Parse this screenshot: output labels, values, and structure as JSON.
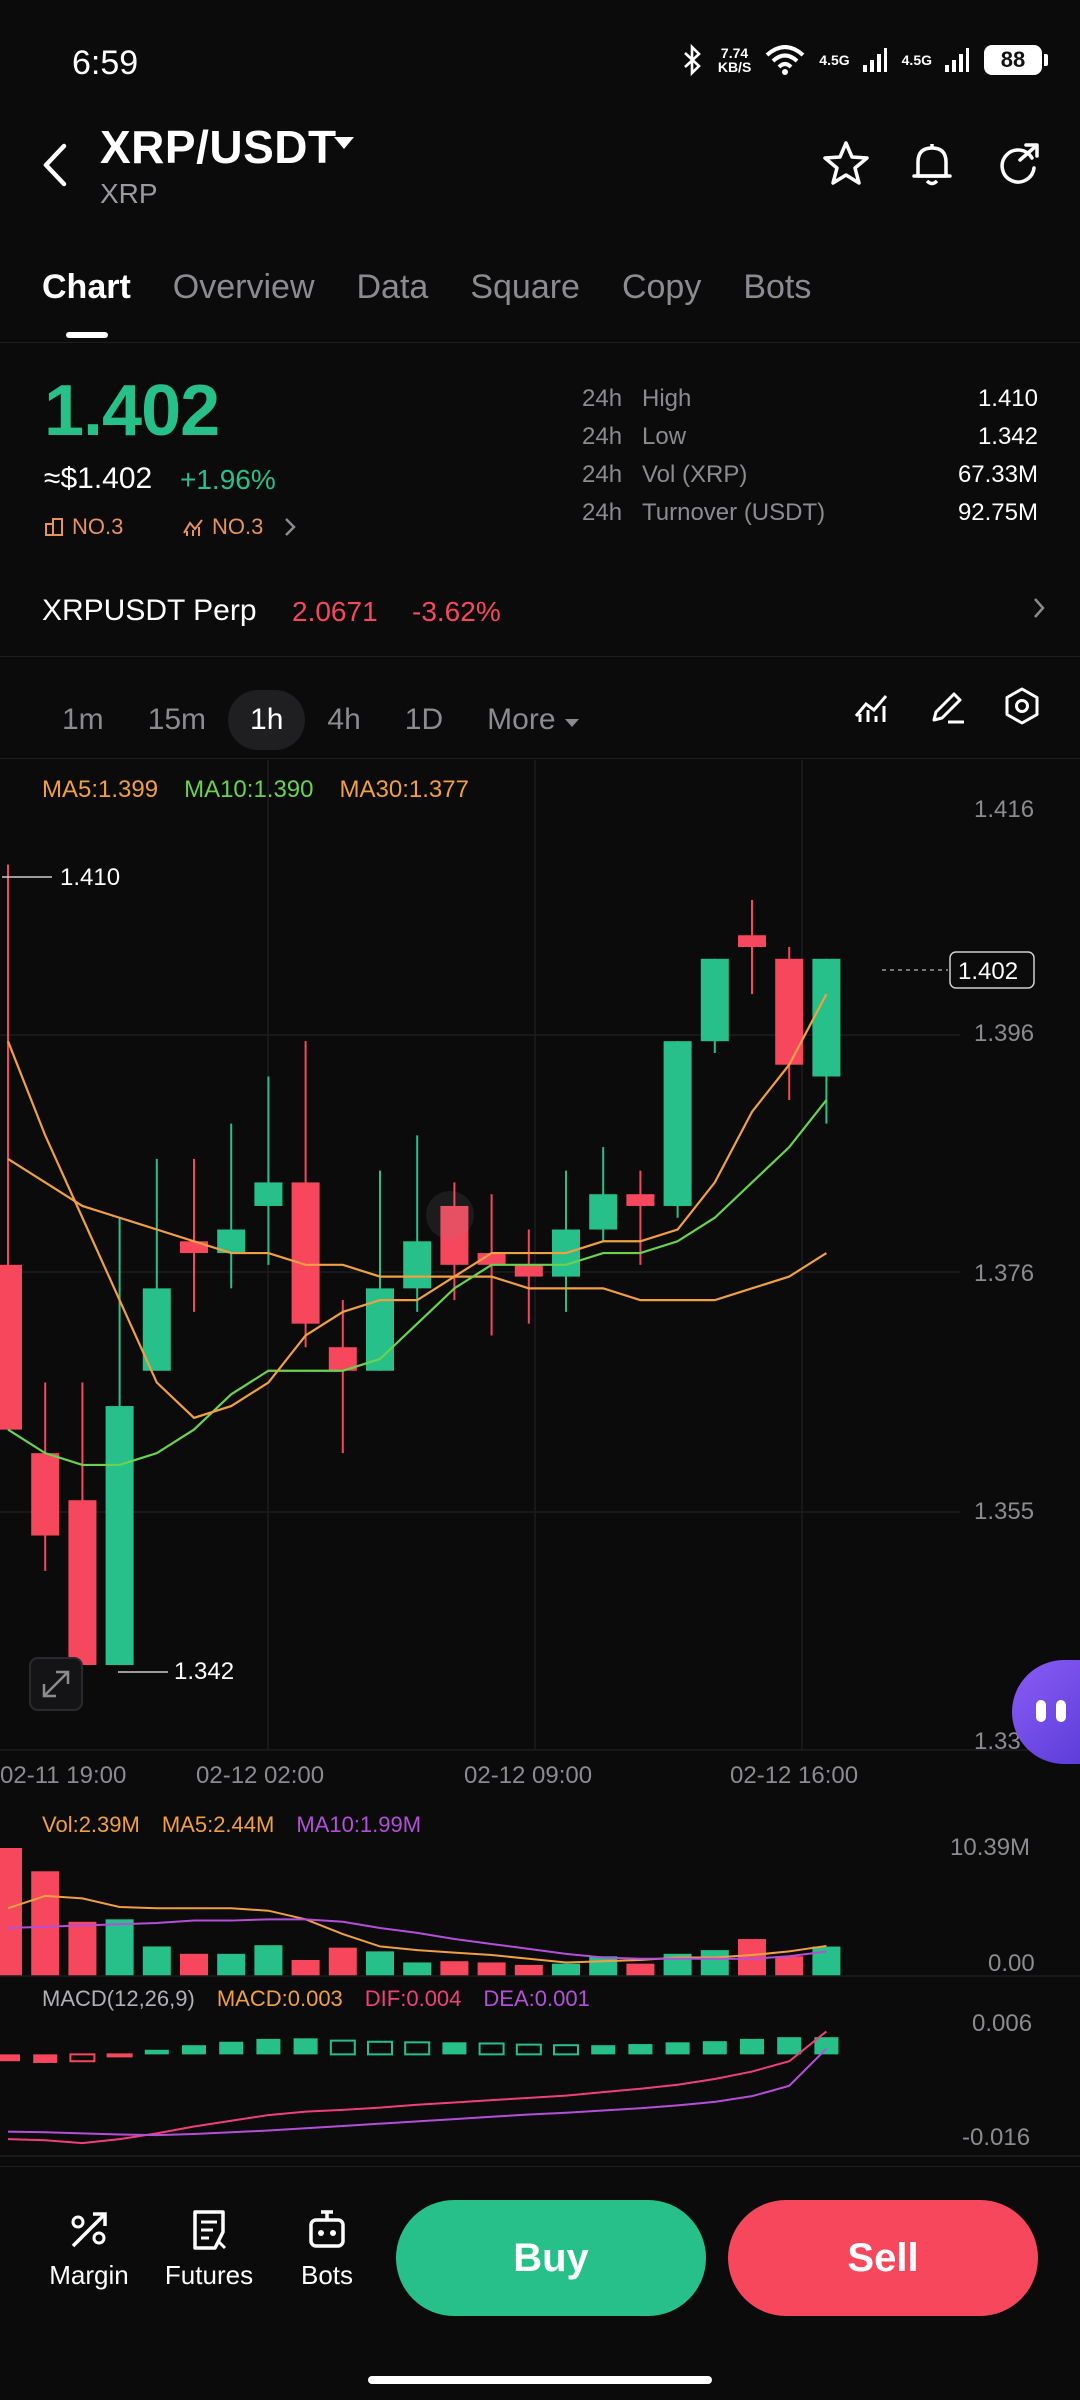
{
  "status": {
    "time": "6:59",
    "net_speed": "7.74",
    "net_unit": "KB/S",
    "signal1": "4.5G",
    "signal2": "4.5G",
    "battery": "88"
  },
  "header": {
    "pair": "XRP/USDT",
    "sub": "XRP"
  },
  "tabs": [
    "Chart",
    "Overview",
    "Data",
    "Square",
    "Copy",
    "Bots"
  ],
  "price": {
    "last": "1.402",
    "fiat": "≈$1.402",
    "change": "+1.96%",
    "rank1": "NO.3",
    "rank2": "NO.3"
  },
  "stats": [
    {
      "period": "24h",
      "label": "High",
      "value": "1.410"
    },
    {
      "period": "24h",
      "label": "Low",
      "value": "1.342"
    },
    {
      "period": "24h",
      "label": "Vol (XRP)",
      "value": "67.33M"
    },
    {
      "period": "24h",
      "label": "Turnover (USDT)",
      "value": "92.75M"
    }
  ],
  "perp": {
    "name": "XRPUSDT Perp",
    "price": "2.0671",
    "change": "-3.62%"
  },
  "timeframes": [
    "1m",
    "15m",
    "1h",
    "4h",
    "1D",
    "More"
  ],
  "ma_legend": {
    "ma5": "MA5:1.399",
    "ma10": "MA10:1.390",
    "ma30": "MA30:1.377"
  },
  "price_axis": [
    "1.416",
    "1.396",
    "1.376",
    "1.355",
    "1.33"
  ],
  "time_axis": [
    "02-11 19:00",
    "02-12 02:00",
    "02-12 09:00",
    "02-12 16:00"
  ],
  "markers": {
    "high": "1.410",
    "low": "1.342",
    "current": "1.402"
  },
  "volume": {
    "vol": "Vol:2.39M",
    "ma5": "MA5:2.44M",
    "ma10": "MA10:1.99M",
    "axis_top": "10.39M",
    "axis_bottom": "0.00"
  },
  "macd": {
    "name": "MACD(12,26,9)",
    "macd": "MACD:0.003",
    "dif": "DIF:0.004",
    "dea": "DEA:0.001",
    "axis_top": "0.006",
    "axis_bottom": "-0.016"
  },
  "bottom": {
    "margin": "Margin",
    "futures": "Futures",
    "bots": "Bots",
    "buy": "Buy",
    "sell": "Sell"
  },
  "colors": {
    "up": "#27c08a",
    "down": "#f6475d",
    "ma5": "#f0a040",
    "ma10": "#6ad24e",
    "ma30": "#f0a040",
    "vol_ma10": "#b44fd8",
    "dif": "#f0407a",
    "dea": "#b44fd8"
  },
  "chart_data": {
    "type": "candlestick",
    "ylim": [
      1.335,
      1.418
    ],
    "candles": [
      {
        "o": 1.376,
        "h": 1.41,
        "c": 1.362,
        "l": 1.362
      },
      {
        "o": 1.36,
        "h": 1.366,
        "c": 1.353,
        "l": 1.35
      },
      {
        "o": 1.356,
        "h": 1.366,
        "c": 1.342,
        "l": 1.342
      },
      {
        "o": 1.342,
        "h": 1.38,
        "c": 1.364,
        "l": 1.342
      },
      {
        "o": 1.367,
        "h": 1.385,
        "c": 1.374,
        "l": 1.367
      },
      {
        "o": 1.378,
        "h": 1.385,
        "c": 1.377,
        "l": 1.372
      },
      {
        "o": 1.377,
        "h": 1.388,
        "c": 1.379,
        "l": 1.374
      },
      {
        "o": 1.381,
        "h": 1.392,
        "c": 1.383,
        "l": 1.376
      },
      {
        "o": 1.383,
        "h": 1.395,
        "c": 1.371,
        "l": 1.369
      },
      {
        "o": 1.369,
        "h": 1.373,
        "c": 1.367,
        "l": 1.36
      },
      {
        "o": 1.367,
        "h": 1.384,
        "c": 1.374,
        "l": 1.367
      },
      {
        "o": 1.374,
        "h": 1.387,
        "c": 1.378,
        "l": 1.372
      },
      {
        "o": 1.381,
        "h": 1.383,
        "c": 1.376,
        "l": 1.373
      },
      {
        "o": 1.377,
        "h": 1.382,
        "c": 1.376,
        "l": 1.37
      },
      {
        "o": 1.376,
        "h": 1.379,
        "c": 1.375,
        "l": 1.371
      },
      {
        "o": 1.375,
        "h": 1.384,
        "c": 1.379,
        "l": 1.372
      },
      {
        "o": 1.379,
        "h": 1.386,
        "c": 1.382,
        "l": 1.378
      },
      {
        "o": 1.382,
        "h": 1.384,
        "c": 1.381,
        "l": 1.376
      },
      {
        "o": 1.381,
        "h": 1.395,
        "c": 1.395,
        "l": 1.38
      },
      {
        "o": 1.395,
        "h": 1.402,
        "c": 1.402,
        "l": 1.394
      },
      {
        "o": 1.404,
        "h": 1.407,
        "c": 1.403,
        "l": 1.399
      },
      {
        "o": 1.402,
        "h": 1.403,
        "c": 1.393,
        "l": 1.39
      },
      {
        "o": 1.392,
        "h": 1.402,
        "c": 1.402,
        "l": 1.388
      }
    ],
    "ma5": [
      1.395,
      1.387,
      1.38,
      1.373,
      1.366,
      1.363,
      1.364,
      1.366,
      1.37,
      1.372,
      1.373,
      1.373,
      1.375,
      1.377,
      1.377,
      1.377,
      1.378,
      1.378,
      1.379,
      1.383,
      1.389,
      1.393,
      1.399
    ],
    "ma10": [
      1.362,
      1.36,
      1.359,
      1.359,
      1.36,
      1.362,
      1.365,
      1.367,
      1.367,
      1.367,
      1.368,
      1.371,
      1.374,
      1.376,
      1.376,
      1.376,
      1.377,
      1.377,
      1.378,
      1.38,
      1.383,
      1.386,
      1.39
    ],
    "ma30": [
      1.385,
      1.383,
      1.381,
      1.38,
      1.379,
      1.378,
      1.377,
      1.377,
      1.376,
      1.376,
      1.375,
      1.375,
      1.375,
      1.375,
      1.374,
      1.374,
      1.374,
      1.373,
      1.373,
      1.373,
      1.374,
      1.375,
      1.377
    ],
    "volume": {
      "ylim": [
        0,
        10.39
      ],
      "values": [
        10.39,
        8.5,
        4.4,
        4.6,
        2.4,
        1.8,
        1.8,
        2.5,
        1.3,
        2.3,
        2.0,
        1.1,
        1.2,
        1.1,
        0.9,
        1.0,
        1.6,
        1.0,
        1.8,
        2.1,
        3.0,
        1.6,
        2.39
      ],
      "ma5": [
        5.5,
        6.5,
        6.3,
        5.6,
        5.5,
        5.5,
        5.5,
        5.3,
        4.6,
        3.4,
        2.4,
        2.1,
        1.9,
        1.7,
        1.4,
        1.1,
        1.2,
        1.3,
        1.5,
        1.5,
        1.7,
        2.0,
        2.44
      ],
      "ma10": [
        3.9,
        4.0,
        4.1,
        4.2,
        4.3,
        4.5,
        4.5,
        4.6,
        4.6,
        4.4,
        3.9,
        3.5,
        3.0,
        2.6,
        2.2,
        1.8,
        1.5,
        1.4,
        1.4,
        1.4,
        1.4,
        1.6,
        1.99
      ]
    },
    "macd": {
      "ylim": [
        -0.016,
        0.006
      ],
      "hist": [
        -0.0012,
        -0.0015,
        -0.0012,
        -0.0002,
        0.0008,
        0.0016,
        0.0022,
        0.0027,
        0.0028,
        0.0024,
        0.0022,
        0.0021,
        0.0021,
        0.0019,
        0.0017,
        0.0016,
        0.0016,
        0.0018,
        0.0021,
        0.0023,
        0.0027,
        0.003,
        0.003
      ],
      "dif": [
        -0.0148,
        -0.015,
        -0.0155,
        -0.0148,
        -0.0138,
        -0.0126,
        -0.0116,
        -0.0106,
        -0.01,
        -0.0097,
        -0.0093,
        -0.0088,
        -0.0084,
        -0.008,
        -0.0076,
        -0.0072,
        -0.0066,
        -0.006,
        -0.0053,
        -0.0043,
        -0.003,
        -0.0012,
        0.004
      ],
      "dea": [
        -0.0135,
        -0.0136,
        -0.0138,
        -0.014,
        -0.0141,
        -0.0139,
        -0.0136,
        -0.0133,
        -0.0129,
        -0.0125,
        -0.0121,
        -0.0117,
        -0.0113,
        -0.0109,
        -0.0105,
        -0.0102,
        -0.0098,
        -0.0094,
        -0.0089,
        -0.0083,
        -0.0073,
        -0.0055,
        0.001
      ]
    }
  }
}
